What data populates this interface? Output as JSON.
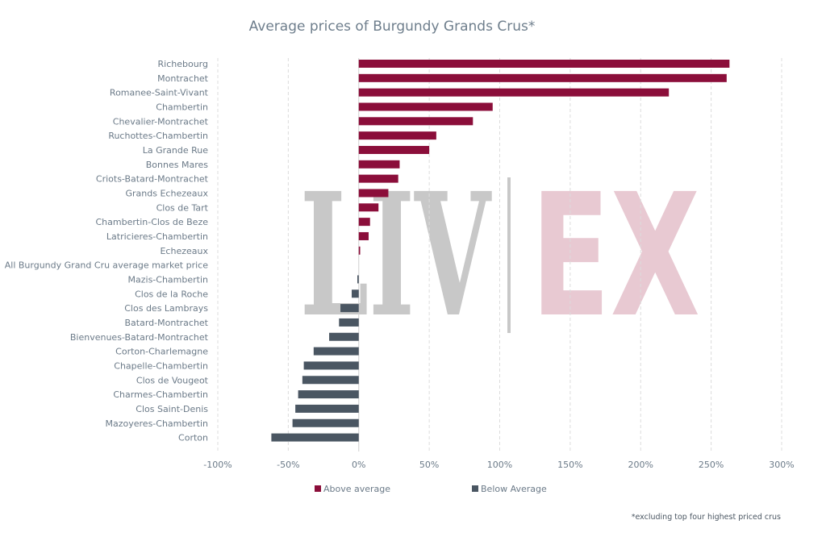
{
  "chart_data": {
    "type": "bar",
    "orientation": "horizontal",
    "title": "Average prices of Burgundy Grands Crus*",
    "footnote": "*excluding top four highest priced crus",
    "watermark": [
      "LIV",
      "EX"
    ],
    "categories": [
      "Richebourg",
      "Montrachet",
      "Romanee-Saint-Vivant",
      "Chambertin",
      "Chevalier-Montrachet",
      "Ruchottes-Chambertin",
      "La Grande Rue",
      "Bonnes Mares",
      "Criots-Batard-Montrachet",
      "Grands Echezeaux",
      "Clos de Tart",
      "Chambertin-Clos de Beze",
      "Latricieres-Chambertin",
      "Echezeaux",
      "All Burgundy Grand Cru average market price",
      "Mazis-Chambertin",
      "Clos de la Roche",
      "Clos des Lambrays",
      "Batard-Montrachet",
      "Bienvenues-Batard-Montrachet",
      "Corton-Charlemagne",
      "Chapelle-Chambertin",
      "Clos de Vougeot",
      "Charmes-Chambertin",
      "Clos Saint-Denis",
      "Mazoyeres-Chambertin",
      "Corton"
    ],
    "values": [
      263,
      261,
      220,
      95,
      81,
      55,
      50,
      29,
      28,
      21,
      14,
      8,
      7,
      1,
      0,
      -1,
      -5,
      -13,
      -14,
      -21,
      -32,
      -39,
      -40,
      -43,
      -45,
      -47,
      -62
    ],
    "xlim": [
      -100,
      300
    ],
    "xticks": [
      -100,
      -50,
      0,
      50,
      100,
      150,
      200,
      250,
      300
    ],
    "xtick_labels": [
      "-100%",
      "-50%",
      "0%",
      "50%",
      "100%",
      "150%",
      "200%",
      "250%",
      "300%"
    ],
    "grid": "vertical dashed",
    "legend": {
      "placement": "bottom",
      "entries": [
        {
          "label": "Above average",
          "color": "#8b0e3a"
        },
        {
          "label": "Below Average",
          "color": "#4a5662"
        }
      ]
    },
    "colors": {
      "above": "#8b0e3a",
      "below": "#4a5662"
    }
  }
}
